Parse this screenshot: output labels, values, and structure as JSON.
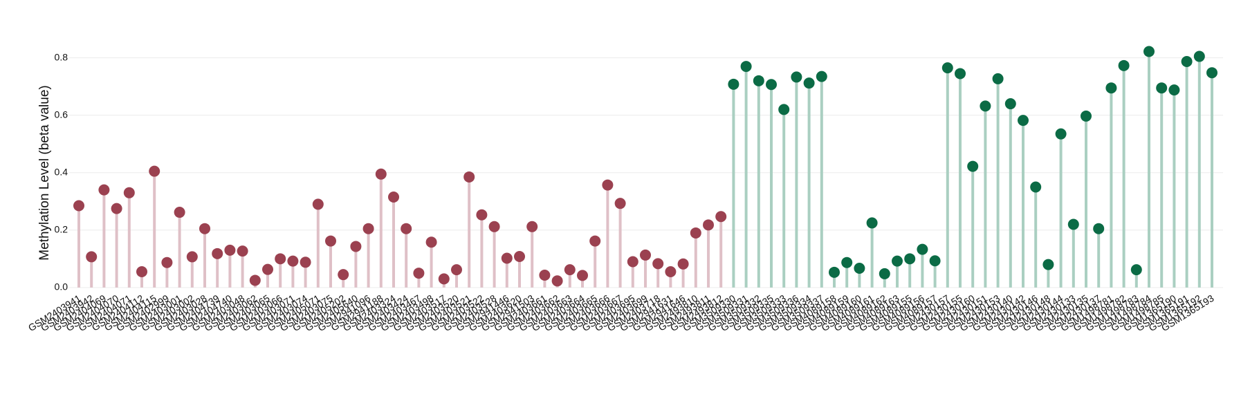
{
  "chart_data": {
    "type": "lollipop",
    "y_label": "Methylation Level (beta value)",
    "ylim": [
      -0.01,
      0.84
    ],
    "yticks": [
      {
        "value": 0,
        "label": "0.0"
      },
      0.2,
      0.4,
      0.6,
      0.8
    ],
    "grid": true,
    "series": [
      {
        "color": "#9b4150",
        "stem_color": "#dfc0c7",
        "categories": [
          "GSM2403941",
          "GSM2403942",
          "GSM2404069",
          "GSM2404070",
          "GSM2404071",
          "GSM2404112",
          "GSM2404115",
          "GSM2402999",
          "GSM2403001",
          "GSM2403002",
          "GSM2403028",
          "GSM2404739",
          "GSM2404740",
          "GSM2403048",
          "GSM2403062",
          "GSM2403065",
          "GSM2403066",
          "GSM2403071",
          "GSM2403074",
          "GSM2405071",
          "GSM2403075",
          "GSM2405202",
          "GSM2405640",
          "GSM2941096",
          "GSM2941188",
          "GSM2403324",
          "GSM2403424",
          "GSM2403467",
          "GSM2403498",
          "GSM2403517",
          "GSM2403520",
          "GSM2403521",
          "GSM2403522",
          "GSM2403528",
          "GSM2941446",
          "GSM2403620",
          "GSM2941503",
          "GSM2403661",
          "GSM2403662",
          "GSM2403663",
          "GSM2403664",
          "GSM2403665",
          "GSM2403666",
          "GSM2403667",
          "GSM2403695",
          "GSM2403699",
          "GSM2403718",
          "GSM2941631",
          "GSM2941646",
          "GSM2493810",
          "GSM2493811",
          "GSM2493812"
        ],
        "values": [
          0.285,
          0.107,
          0.34,
          0.275,
          0.33,
          0.055,
          0.405,
          0.087,
          0.262,
          0.107,
          0.205,
          0.118,
          0.13,
          0.127,
          0.025,
          0.063,
          0.1,
          0.092,
          0.088,
          0.29,
          0.162,
          0.045,
          0.143,
          0.205,
          0.395,
          0.315,
          0.205,
          0.05,
          0.158,
          0.03,
          0.062,
          0.385,
          0.253,
          0.212,
          0.102,
          0.108,
          0.212,
          0.043,
          0.023,
          0.062,
          0.042,
          0.162,
          0.357,
          0.293,
          0.09,
          0.113,
          0.083,
          0.055,
          0.082,
          0.19,
          0.218,
          0.247
        ]
      },
      {
        "color": "#0b6b45",
        "stem_color": "#aacfc1",
        "categories": [
          "GSM3509330",
          "GSM3509331",
          "GSM3509332",
          "GSM3509335",
          "GSM3509333",
          "GSM3509336",
          "GSM3509334",
          "GSM3509337",
          "GSM4089158",
          "GSM4089159",
          "GSM4089160",
          "GSM4089161",
          "GSM4089162",
          "GSM4089163",
          "GSM4089155",
          "GSM4089156",
          "GSM4089157",
          "GSM2430157",
          "GSM2430155",
          "GSM2430160",
          "GSM2430151",
          "GSM2430153",
          "GSM2430140",
          "GSM2430142",
          "GSM2430146",
          "GSM2430148",
          "GSM2430144",
          "GSM2430133",
          "GSM2430135",
          "GSM2430137",
          "GSM1498781",
          "GSM1498782",
          "GSM1498783",
          "GSM1498784",
          "GSM1498785",
          "GSM1365190",
          "GSM1365191",
          "GSM1365192",
          "GSM1365193"
        ],
        "values": [
          0.708,
          0.77,
          0.72,
          0.707,
          0.62,
          0.733,
          0.712,
          0.735,
          0.053,
          0.087,
          0.067,
          0.225,
          0.048,
          0.092,
          0.1,
          0.133,
          0.093,
          0.765,
          0.745,
          0.422,
          0.632,
          0.727,
          0.64,
          0.582,
          0.35,
          0.08,
          0.535,
          0.22,
          0.597,
          0.205,
          0.695,
          0.773,
          0.062,
          0.822,
          0.695,
          0.688,
          0.787,
          0.805,
          0.748
        ]
      }
    ]
  }
}
